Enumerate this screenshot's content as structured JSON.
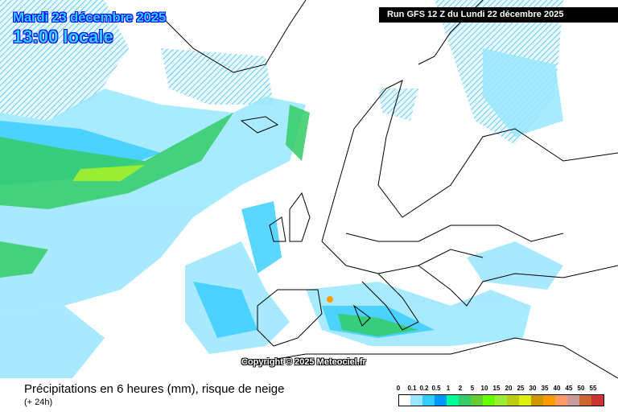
{
  "header": {
    "date": "Mardi 23 décembre 2025",
    "time": "13:00 locale",
    "run": "Run GFS 12 Z du Lundi 22 décembre 2025"
  },
  "copyright": "Copyright © 2025 Meteociel.fr",
  "footer": {
    "title": "Précipitations en 6 heures (mm), risque de neige",
    "subtitle": "(+ 24h)"
  },
  "legend": {
    "labels": [
      "0",
      "0.1",
      "0.2",
      "0.5",
      "1",
      "2",
      "5",
      "10",
      "15",
      "20",
      "25",
      "30",
      "35",
      "40",
      "45",
      "50",
      "55"
    ],
    "colors": [
      "#ffffff",
      "#99e6ff",
      "#33ccff",
      "#0099ff",
      "#00ff99",
      "#33cc66",
      "#66cc33",
      "#66ff00",
      "#99ee33",
      "#bbcc11",
      "#ddee11",
      "#cc9900",
      "#ff9900",
      "#ff9966",
      "#cc9999",
      "#cc6633",
      "#cc3333"
    ]
  },
  "map_colors": {
    "land_outline": "#000000",
    "snow_hatch": "#66ccee",
    "light_precip": "#99e6ff",
    "moderate_precip": "#33ccff",
    "green_precip": "#33cc66"
  }
}
